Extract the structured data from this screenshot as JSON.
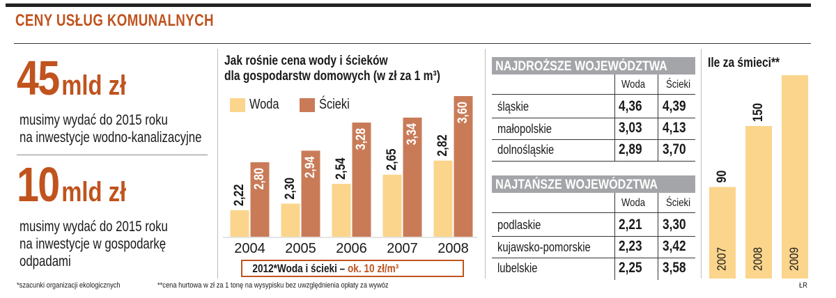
{
  "header": {
    "title": "CENY USŁUG KOMUNALNYCH"
  },
  "left": {
    "stat1": {
      "value": "45",
      "unit": "mld zł",
      "line1": "musimy wydać do 2015 roku",
      "line2": "na inwestycje wodno-kanalizacyjne"
    },
    "stat2": {
      "value": "10",
      "unit": "mld zł",
      "line1": "musimy wydać do 2015 roku",
      "line2": "na inwestycje w gospodarkę",
      "line3": "odpadami"
    }
  },
  "colors": {
    "accent": "#c0531e",
    "woda": "#fbd58c",
    "scieki": "#c97b58",
    "header_gray": "#a4a5a9",
    "smieci": "#fbd58c"
  },
  "chart_data": [
    {
      "type": "bar",
      "title_line1": "Jak rośnie cena wody i ścieków",
      "title_line2": "dla gospodarstw domowych (w zł za 1 m³)",
      "categories": [
        "2004",
        "2005",
        "2006",
        "2007",
        "2008"
      ],
      "series": [
        {
          "name": "Woda",
          "values": [
            2.22,
            2.3,
            2.54,
            2.65,
            2.82
          ],
          "labels": [
            "2,22",
            "2,30",
            "2,54",
            "2,65",
            "2,82"
          ]
        },
        {
          "name": "Ścieki",
          "values": [
            2.8,
            2.94,
            3.28,
            3.34,
            3.6
          ],
          "labels": [
            "2,80",
            "2,94",
            "3,28",
            "3,34",
            "3,60"
          ]
        }
      ],
      "ylim": [
        1.9,
        3.6
      ],
      "legend_position": "top-left",
      "note_prefix": "2012*Woda i ścieki – ",
      "note_highlight": "ok. 10 zł/m³"
    },
    {
      "type": "bar",
      "title": "Ile za śmieci**",
      "categories": [
        "2007",
        "2008",
        "2009"
      ],
      "values": [
        90,
        150,
        200
      ],
      "ylim": [
        0,
        200
      ]
    }
  ],
  "tables": {
    "expensive": {
      "title": "NAJDROŻSZE WOJEWÓDZTWA",
      "col_woda": "Woda",
      "col_scieki": "Ścieki",
      "rows": [
        {
          "name": "śląskie",
          "woda": "4,36",
          "scieki": "4,39"
        },
        {
          "name": "małopolskie",
          "woda": "3,03",
          "scieki": "4,13"
        },
        {
          "name": "dolnośląskie",
          "woda": "2,89",
          "scieki": "3,70"
        }
      ]
    },
    "cheap": {
      "title": "NAJTAŃSZE WOJEWÓDZTWA",
      "col_woda": "Woda",
      "col_scieki": "Ścieki",
      "rows": [
        {
          "name": "podlaskie",
          "woda": "2,21",
          "scieki": "3,30"
        },
        {
          "name": "kujawsko-pomorskie",
          "woda": "2,23",
          "scieki": "3,42"
        },
        {
          "name": "lubelskie",
          "woda": "2,25",
          "scieki": "3,58"
        }
      ]
    }
  },
  "footer": {
    "note1": "*szacunki organizacji ekologicznych",
    "note2": "**cena hurtowa w zł za 1 tonę na wysypisku bez uwzględnienia opłaty za wywóz",
    "credit": "ŁR"
  }
}
